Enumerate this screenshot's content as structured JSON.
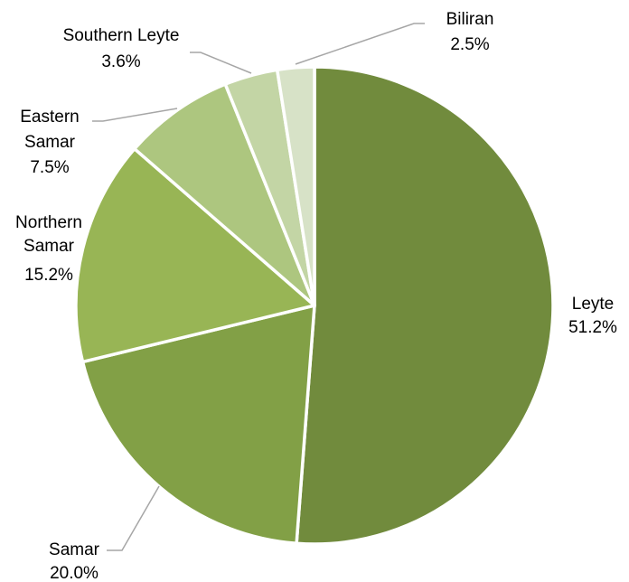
{
  "chart_data": {
    "type": "pie",
    "title": "",
    "legend": "none",
    "start_angle_deg": 0,
    "direction": "clockwise",
    "slices": [
      {
        "label": "Leyte",
        "value": 51.2,
        "value_label": "51.2%",
        "color": "#718b3d"
      },
      {
        "label": "Samar",
        "value": 20.0,
        "value_label": "20.0%",
        "color": "#82a046"
      },
      {
        "label": "Northern Samar",
        "value": 15.2,
        "value_label": "15.2%",
        "color": "#98b555"
      },
      {
        "label": "Eastern Samar",
        "value": 7.5,
        "value_label": "7.5%",
        "color": "#adc67f"
      },
      {
        "label": "Southern Leyte",
        "value": 3.6,
        "value_label": "3.6%",
        "color": "#c3d5a5"
      },
      {
        "label": "Biliran",
        "value": 2.5,
        "value_label": "2.5%",
        "color": "#d7e2c7"
      }
    ]
  }
}
